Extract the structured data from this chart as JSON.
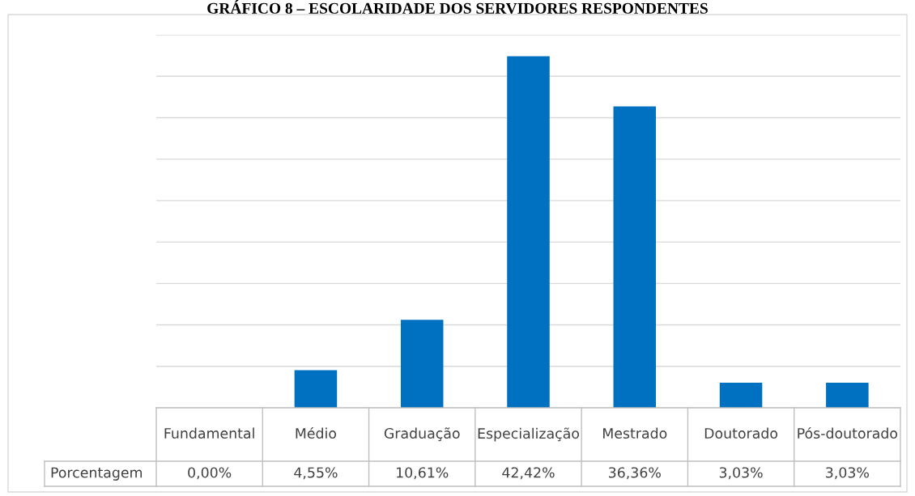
{
  "chart_data": {
    "type": "bar",
    "title": "GRÁFICO 8 – ESCOLARIDADE DOS SERVIDORES RESPONDENTES",
    "categories": [
      "Fundamental",
      "Médio",
      "Graduação",
      "Especialização",
      "Mestrado",
      "Doutorado",
      "Pós-doutorado"
    ],
    "series": [
      {
        "name": "Porcentagem",
        "color": "#0070c0",
        "values": [
          0.0,
          4.55,
          10.61,
          42.42,
          36.36,
          3.03,
          3.03
        ],
        "value_labels": [
          "0,00%",
          "4,55%",
          "10,61%",
          "42,42%",
          "36,36%",
          "3,03%",
          "3,03%"
        ]
      }
    ],
    "ylim": [
      0,
      45
    ],
    "yticks": [
      {
        "value": 0,
        "label": null
      },
      {
        "value": 5,
        "label": null
      },
      {
        "value": 10,
        "label": null
      },
      {
        "value": 15,
        "label": null
      },
      {
        "value": 20,
        "label": null
      },
      {
        "value": 25,
        "label": null
      },
      {
        "value": 30,
        "label": null
      },
      {
        "value": 35,
        "label": null
      },
      {
        "value": 40,
        "label": null
      },
      {
        "value": 45,
        "label": null
      }
    ],
    "grid": "y",
    "tick_labels": "x",
    "legend": false
  }
}
